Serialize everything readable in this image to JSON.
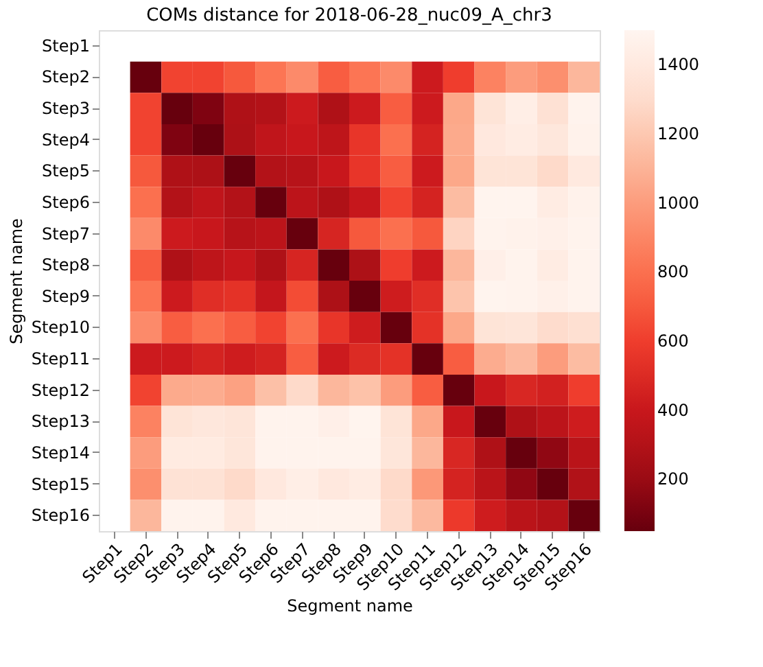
{
  "chart_data": {
    "type": "heatmap",
    "title": "COMs distance for 2018-06-28_nuc09_A_chr3",
    "xlabel": "Segment name",
    "ylabel": "Segment name",
    "categories": [
      "Step1",
      "Step2",
      "Step3",
      "Step4",
      "Step5",
      "Step6",
      "Step7",
      "Step8",
      "Step9",
      "Step10",
      "Step11",
      "Step12",
      "Step13",
      "Step14",
      "Step15",
      "Step16"
    ],
    "y_categories": [
      "Step1",
      "Step2",
      "Step3",
      "Step4",
      "Step5",
      "Step6",
      "Step7",
      "Step8",
      "Step9",
      "Step10",
      "Step11",
      "Step12",
      "Step13",
      "Step14",
      "Step15",
      "Step16"
    ],
    "cells": [
      [
        null,
        null,
        null,
        null,
        null,
        null,
        null,
        null,
        null,
        null,
        null,
        null,
        null,
        null,
        null,
        null
      ],
      [
        null,
        50,
        620,
        620,
        700,
        820,
        920,
        720,
        820,
        920,
        420,
        600,
        880,
        1000,
        940,
        1120
      ],
      [
        null,
        620,
        50,
        120,
        280,
        300,
        420,
        280,
        420,
        720,
        420,
        1050,
        1350,
        1440,
        1330,
        1480
      ],
      [
        null,
        620,
        120,
        50,
        270,
        360,
        400,
        350,
        560,
        800,
        460,
        1060,
        1390,
        1420,
        1380,
        1470
      ],
      [
        null,
        700,
        280,
        270,
        50,
        300,
        320,
        400,
        560,
        720,
        420,
        1050,
        1350,
        1350,
        1290,
        1400
      ],
      [
        null,
        800,
        300,
        360,
        300,
        50,
        340,
        280,
        390,
        620,
        460,
        1140,
        1490,
        1490,
        1420,
        1470
      ],
      [
        null,
        920,
        420,
        400,
        320,
        340,
        50,
        470,
        700,
        800,
        700,
        1260,
        1480,
        1470,
        1460,
        1480
      ],
      [
        null,
        720,
        280,
        350,
        390,
        280,
        470,
        50,
        270,
        600,
        420,
        1120,
        1450,
        1480,
        1420,
        1480
      ],
      [
        null,
        820,
        420,
        520,
        540,
        380,
        650,
        270,
        50,
        430,
        520,
        1180,
        1490,
        1480,
        1460,
        1480
      ],
      [
        null,
        920,
        720,
        800,
        720,
        620,
        800,
        560,
        430,
        50,
        540,
        1050,
        1350,
        1360,
        1300,
        1320
      ],
      [
        null,
        420,
        420,
        460,
        430,
        460,
        720,
        420,
        500,
        540,
        50,
        720,
        1070,
        1130,
        1000,
        1140
      ],
      [
        null,
        620,
        1060,
        1070,
        1020,
        1160,
        1290,
        1120,
        1170,
        1000,
        720,
        50,
        400,
        480,
        450,
        600
      ],
      [
        null,
        880,
        1350,
        1380,
        1360,
        1480,
        1480,
        1450,
        1490,
        1350,
        1050,
        400,
        50,
        280,
        340,
        430
      ],
      [
        null,
        1000,
        1410,
        1410,
        1370,
        1480,
        1480,
        1480,
        1480,
        1370,
        1120,
        480,
        280,
        50,
        170,
        330
      ],
      [
        null,
        940,
        1340,
        1340,
        1290,
        1390,
        1440,
        1390,
        1420,
        1290,
        980,
        460,
        330,
        170,
        50,
        290
      ],
      [
        null,
        1120,
        1480,
        1480,
        1400,
        1480,
        1480,
        1480,
        1480,
        1300,
        1130,
        580,
        430,
        330,
        300,
        50
      ]
    ],
    "clim": [
      50,
      1500
    ],
    "cticks": [
      200,
      400,
      600,
      800,
      1000,
      1200,
      1400
    ]
  }
}
